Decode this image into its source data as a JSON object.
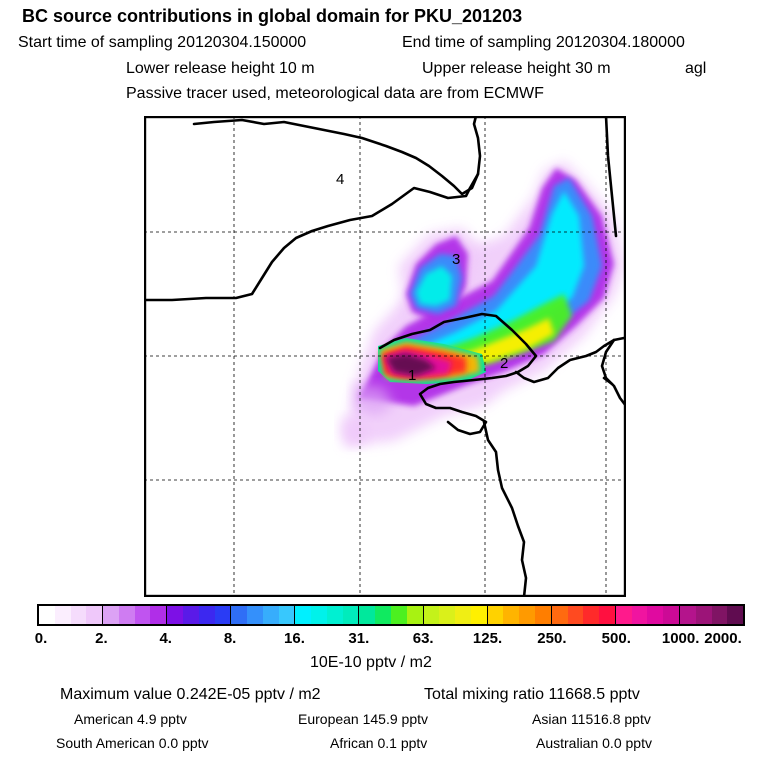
{
  "header": {
    "title": "BC  source contributions in global domain for PKU_201203",
    "start_label": "Start time of sampling 20120304.150000",
    "end_label": "End time of sampling 20120304.180000",
    "lower_height": "Lower release height   10 m",
    "upper_height": "Upper release height   30 m",
    "agl": "agl",
    "tracer_line": "Passive tracer used, meteorological data are from ECMWF"
  },
  "map": {
    "region_labels": [
      "1",
      "2",
      "3",
      "4"
    ]
  },
  "colorbar": {
    "ticks": [
      "0.",
      "2.",
      "4.",
      "8.",
      "16.",
      "31.",
      "63.",
      "125.",
      "250.",
      "500.",
      "1000.",
      "2000."
    ],
    "segments": [
      [
        "#ffffff",
        "#fbeefe",
        "#f5dcfc",
        "#efc8fa"
      ],
      [
        "#dca2f5",
        "#cf7cf2",
        "#c054f0",
        "#b02ee8"
      ],
      [
        "#7d10e6",
        "#5a1ae8",
        "#3c28f0",
        "#2a3cf5"
      ],
      [
        "#2f6ef6",
        "#3490fb",
        "#37adfc",
        "#38c8fd"
      ],
      [
        "#00f0ff",
        "#00f2ea",
        "#00f0d2",
        "#00ecbc"
      ],
      [
        "#00e89c",
        "#10ea60",
        "#4cf020",
        "#a8f212"
      ],
      [
        "#c4f21a",
        "#daf01a",
        "#f0ee14",
        "#fff000"
      ],
      [
        "#ffd200",
        "#ffb400",
        "#ff9a00",
        "#ff7e00"
      ],
      [
        "#ff6a10",
        "#ff4a20",
        "#ff2a2a",
        "#ff1040"
      ],
      [
        "#ff1a8c",
        "#f014a0",
        "#e00aa0",
        "#cc0a96"
      ],
      [
        "#b4148c",
        "#9c1478",
        "#801464",
        "#600c50"
      ]
    ],
    "unit": "10E-10 pptv / m2"
  },
  "stats": {
    "max_value": "Maximum value  0.242E-05 pptv / m2",
    "total_mixing": "Total mixing ratio    11668.5 pptv",
    "american": "American      4.9 pptv",
    "european": "European     145.9 pptv",
    "asian": "Asian    11516.8 pptv",
    "south_american": "South American         0.0 pptv",
    "african": "African      0.1 pptv",
    "australian": "Australian        0.0 pptv"
  }
}
